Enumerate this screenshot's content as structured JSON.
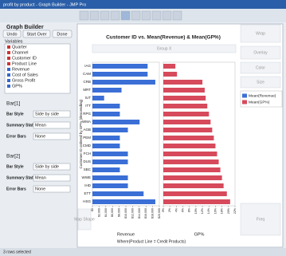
{
  "window": {
    "title": "profit by product - Graph Builder - JMP Pro"
  },
  "panel": {
    "title": "Graph Builder",
    "buttons": [
      "Undo",
      "Start Over",
      "Done"
    ],
    "variables_label": "Variables",
    "variables": [
      "Quarter",
      "Channel",
      "Customer ID",
      "Product Line",
      "Revenue",
      "Cost of Sales",
      "Gross Profit",
      "GP%"
    ],
    "bar_sections": [
      {
        "title": "Bar[1]",
        "fields": [
          {
            "label": "Bar Style",
            "value": "Side by side"
          },
          {
            "label": "Summary Statistic",
            "value": "Mean"
          },
          {
            "label": "Error Bars",
            "value": "None"
          }
        ]
      },
      {
        "title": "Bar[2]",
        "fields": [
          {
            "label": "Bar Style",
            "value": "Side by side"
          },
          {
            "label": "Summary Statistic",
            "value": "Mean"
          },
          {
            "label": "Error Bars",
            "value": "None"
          }
        ]
      }
    ]
  },
  "drop_zones": {
    "group_x": "Group X",
    "wrap": "Wrap",
    "overlay": "Overlay",
    "color": "Color",
    "size": "Size",
    "freq": "Freq",
    "map_shape": "Map Shape"
  },
  "status": "3 rows selected",
  "chart_data": {
    "type": "bar",
    "title": "Customer ID vs. Mean(Revenue) & Mean(GP%)",
    "y_label": "Customer ID ordered by GP% (descending)",
    "footer": "Where(Product Line = Credit Products)",
    "categories": [
      "IAG",
      "CAM",
      "CRB",
      "MRT",
      "IUT",
      "ITT",
      "RPG",
      "WMA",
      "AGB",
      "PEM",
      "CMD",
      "FCH",
      "DUS",
      "SBC",
      "WWE",
      "IHD",
      "ETT",
      "HSG"
    ],
    "series": [
      {
        "name": "Mean(Revenue)",
        "color": "#3b6fd6",
        "xlabel": "Revenue",
        "values": [
          16500,
          16500,
          18800,
          8700,
          3500,
          8200,
          8200,
          14100,
          10600,
          8200,
          8200,
          10600,
          10600,
          8200,
          10600,
          10600,
          15300,
          18800
        ],
        "xlim": [
          0,
          20000
        ],
        "xticks": [
          {
            "value": 0,
            "label": "$0"
          },
          {
            "value": 2000,
            "label": "$2,000"
          },
          {
            "value": 4000,
            "label": "$4,000"
          },
          {
            "value": 6000,
            "label": "$6,000"
          },
          {
            "value": 8000,
            "label": "$8,000"
          },
          {
            "value": 10000,
            "label": "$10,000"
          },
          {
            "value": 12000,
            "label": "$12,000"
          },
          {
            "value": 14000,
            "label": "$14,000"
          },
          {
            "value": 16000,
            "label": "$16,000"
          },
          {
            "value": 18000,
            "label": "$18,000"
          },
          {
            "value": 20000,
            "label": "$20,000"
          }
        ]
      },
      {
        "name": "Mean(GP%)",
        "color": "#d64a5c",
        "xlabel": "GP%",
        "values": [
          3.7,
          4.2,
          12,
          12.7,
          13,
          13.5,
          14,
          14.5,
          15,
          15.5,
          16,
          16.5,
          17,
          17.5,
          18,
          18.5,
          19.5,
          20.5
        ],
        "xlim": [
          0,
          22
        ],
        "xticks": [
          {
            "value": 0,
            "label": "0%"
          },
          {
            "value": 2,
            "label": "2%"
          },
          {
            "value": 4,
            "label": "4%"
          },
          {
            "value": 6,
            "label": "6%"
          },
          {
            "value": 8,
            "label": "8%"
          },
          {
            "value": 10,
            "label": "10%"
          },
          {
            "value": 12,
            "label": "12%"
          },
          {
            "value": 14,
            "label": "14%"
          },
          {
            "value": 16,
            "label": "16%"
          },
          {
            "value": 18,
            "label": "18%"
          },
          {
            "value": 20,
            "label": "20%"
          },
          {
            "value": 22,
            "label": "22%"
          }
        ]
      }
    ]
  }
}
